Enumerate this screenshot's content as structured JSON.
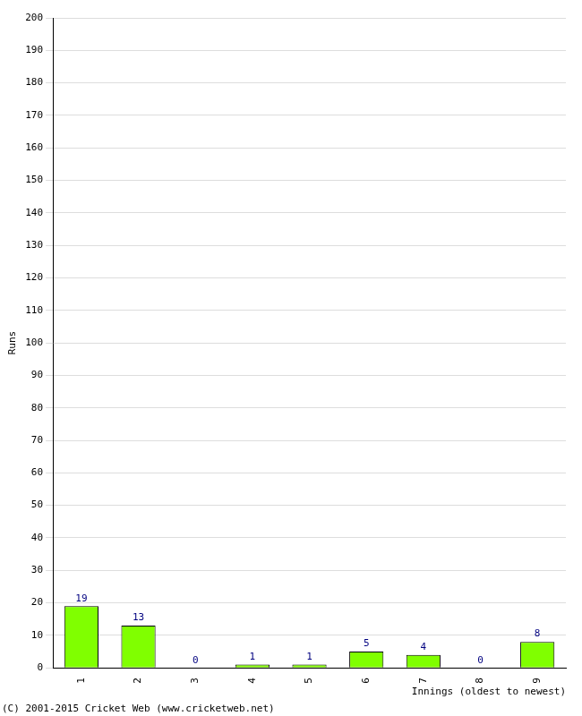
{
  "chart_data": {
    "type": "bar",
    "y_label": "Runs",
    "x_label": "Innings (oldest to newest)",
    "annotations": [
      "(C) 2001-2015 Cricket Web (www.cricketweb.net)"
    ],
    "categories": [
      "1",
      "2",
      "3",
      "4",
      "5",
      "6",
      "7",
      "8",
      "9"
    ],
    "values": [
      19,
      13,
      0,
      1,
      1,
      5,
      4,
      0,
      8
    ],
    "color": "#80ff00",
    "ylim": [
      0,
      200
    ],
    "yticks": [
      0,
      10,
      20,
      30,
      40,
      50,
      60,
      70,
      80,
      90,
      100,
      110,
      120,
      130,
      140,
      150,
      160,
      170,
      180,
      190,
      200
    ],
    "grid": true,
    "data_labels": true
  }
}
